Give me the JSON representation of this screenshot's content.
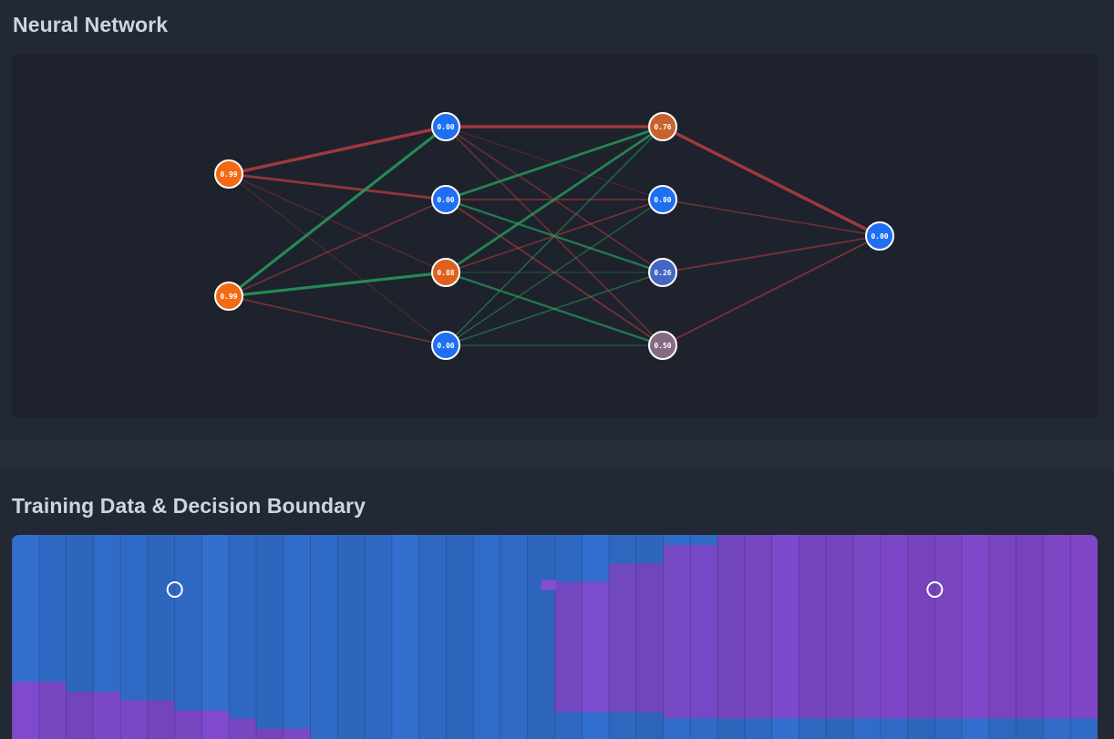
{
  "network_section": {
    "title": "Neural Network"
  },
  "training_section": {
    "title": "Training Data & Decision Boundary"
  },
  "network": {
    "layers": [
      {
        "name": "input",
        "nodes": [
          {
            "label": "0.99",
            "color": "#f26a12"
          },
          {
            "label": "0.99",
            "color": "#f26a12"
          }
        ]
      },
      {
        "name": "hidden-1",
        "nodes": [
          {
            "label": "0.00",
            "color": "#1f6ff2"
          },
          {
            "label": "0.00",
            "color": "#1f6ff2"
          },
          {
            "label": "0.88",
            "color": "#e0611c"
          },
          {
            "label": "0.00",
            "color": "#1f6ff2"
          }
        ]
      },
      {
        "name": "hidden-2",
        "nodes": [
          {
            "label": "0.76",
            "color": "#c9612f"
          },
          {
            "label": "0.00",
            "color": "#1f6ff2"
          },
          {
            "label": "0.26",
            "color": "#4666c4"
          },
          {
            "label": "0.50",
            "color": "#866a84"
          }
        ]
      },
      {
        "name": "output",
        "nodes": [
          {
            "label": "0.00",
            "color": "#1f6ff2"
          }
        ]
      }
    ],
    "edges": [
      {
        "from": [
          0,
          0
        ],
        "to": [
          1,
          0
        ],
        "weight": -0.9
      },
      {
        "from": [
          0,
          0
        ],
        "to": [
          1,
          1
        ],
        "weight": -0.7
      },
      {
        "from": [
          0,
          0
        ],
        "to": [
          1,
          2
        ],
        "weight": -0.15
      },
      {
        "from": [
          0,
          0
        ],
        "to": [
          1,
          3
        ],
        "weight": -0.1
      },
      {
        "from": [
          0,
          1
        ],
        "to": [
          1,
          0
        ],
        "weight": 0.8
      },
      {
        "from": [
          0,
          1
        ],
        "to": [
          1,
          1
        ],
        "weight": -0.35
      },
      {
        "from": [
          0,
          1
        ],
        "to": [
          1,
          2
        ],
        "weight": 0.8
      },
      {
        "from": [
          0,
          1
        ],
        "to": [
          1,
          3
        ],
        "weight": -0.35
      },
      {
        "from": [
          1,
          0
        ],
        "to": [
          2,
          0
        ],
        "weight": -0.9
      },
      {
        "from": [
          1,
          0
        ],
        "to": [
          2,
          1
        ],
        "weight": -0.1
      },
      {
        "from": [
          1,
          0
        ],
        "to": [
          2,
          2
        ],
        "weight": -0.3
      },
      {
        "from": [
          1,
          0
        ],
        "to": [
          2,
          3
        ],
        "weight": -0.3
      },
      {
        "from": [
          1,
          1
        ],
        "to": [
          2,
          0
        ],
        "weight": 0.7
      },
      {
        "from": [
          1,
          1
        ],
        "to": [
          2,
          1
        ],
        "weight": -0.35
      },
      {
        "from": [
          1,
          1
        ],
        "to": [
          2,
          2
        ],
        "weight": 0.55
      },
      {
        "from": [
          1,
          1
        ],
        "to": [
          2,
          3
        ],
        "weight": -0.4
      },
      {
        "from": [
          1,
          2
        ],
        "to": [
          2,
          0
        ],
        "weight": 0.7
      },
      {
        "from": [
          1,
          2
        ],
        "to": [
          2,
          1
        ],
        "weight": -0.35
      },
      {
        "from": [
          1,
          2
        ],
        "to": [
          2,
          2
        ],
        "weight": 0.1
      },
      {
        "from": [
          1,
          2
        ],
        "to": [
          2,
          3
        ],
        "weight": 0.55
      },
      {
        "from": [
          1,
          3
        ],
        "to": [
          2,
          0
        ],
        "weight": 0.3
      },
      {
        "from": [
          1,
          3
        ],
        "to": [
          2,
          1
        ],
        "weight": 0.25
      },
      {
        "from": [
          1,
          3
        ],
        "to": [
          2,
          2
        ],
        "weight": 0.3
      },
      {
        "from": [
          1,
          3
        ],
        "to": [
          2,
          3
        ],
        "weight": 0.2
      },
      {
        "from": [
          2,
          0
        ],
        "to": [
          3,
          0
        ],
        "weight": -0.9
      },
      {
        "from": [
          2,
          1
        ],
        "to": [
          3,
          0
        ],
        "weight": -0.3
      },
      {
        "from": [
          2,
          2
        ],
        "to": [
          3,
          0
        ],
        "weight": -0.4
      },
      {
        "from": [
          2,
          3
        ],
        "to": [
          3,
          0
        ],
        "weight": -0.4
      }
    ],
    "colors": {
      "positive": "#27a05e",
      "negative": "#b23c40"
    }
  },
  "decision_boundary": {
    "grid_columns": 40,
    "boundary_row_fraction": [
      0.72,
      0.72,
      0.77,
      0.77,
      0.81,
      0.81,
      0.86,
      0.86,
      0.9,
      0.95,
      0.95,
      1.0,
      1.05,
      1.05,
      1.1,
      1.1,
      1.1,
      1.1,
      1.1,
      1.1,
      -0.02,
      -0.02,
      -0.02,
      -0.02,
      -0.02,
      -0.02,
      -0.02,
      -0.02,
      -0.02,
      -0.02,
      -0.02,
      -0.02,
      -0.02,
      -0.02,
      -0.02,
      -0.02,
      -0.02,
      -0.02,
      -0.02,
      -0.02
    ],
    "upper_purple_from_column": 20,
    "upper_purple_row_fraction": [
      0.23,
      0.23,
      0.14,
      0.14,
      0.05,
      0.05,
      0.0,
      0.0,
      0.0,
      0.0,
      0.0,
      0.0,
      0.0,
      0.0,
      0.0,
      0.0,
      0.0,
      0.0,
      0.0,
      0.0
    ],
    "lower_blue_from_fraction": [
      0.8,
      0.8,
      0.8,
      0.8,
      0.8,
      0.8,
      0.8,
      0.8,
      0.8,
      0.8,
      0.8,
      0.8,
      0.8,
      0.8,
      0.8,
      0.8,
      0.8,
      0.8,
      0.8,
      0.8,
      0.87,
      0.87,
      0.87,
      0.87,
      0.9,
      0.9,
      0.9,
      0.9,
      0.9,
      0.9,
      0.9,
      0.9,
      0.9,
      0.9,
      0.9,
      0.9,
      0.9,
      0.9,
      0.9,
      0.9
    ],
    "colors": {
      "blue": "#3574d8",
      "purple": "#8a4cd6"
    },
    "points": [
      {
        "x": -0.7,
        "y": 0.7,
        "class": "blue"
      },
      {
        "x": 0.7,
        "y": 0.7,
        "class": "purple"
      }
    ]
  }
}
